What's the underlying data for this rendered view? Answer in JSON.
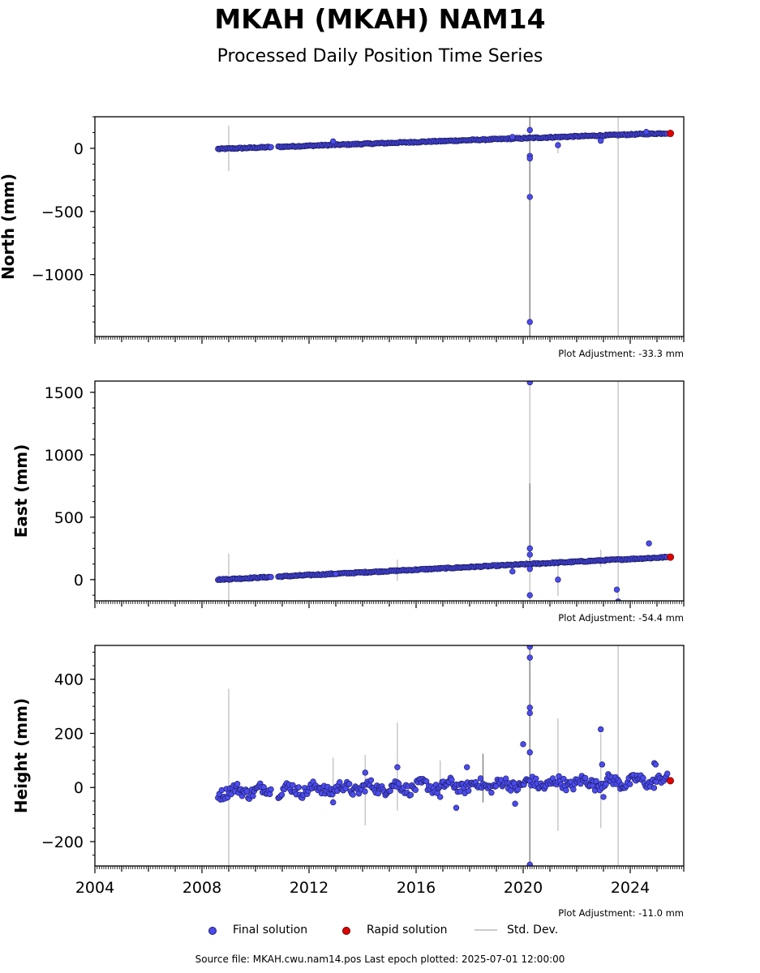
{
  "title": "MKAH (MKAH) NAM14",
  "subtitle": "Processed Daily Position Time Series",
  "legend": {
    "final": "Final solution",
    "rapid": "Rapid solution",
    "std": "Std. Dev."
  },
  "footer": "Source file: MKAH.cwu.nam14.pos  Last epoch plotted: 2025-07-01 12:00:00",
  "colors": {
    "final": "#4b4bef",
    "rapid": "#e00000",
    "stddev": "#c8c8c8",
    "axis": "#000000"
  },
  "chart_data": [
    {
      "type": "scatter",
      "ylabel": "North (mm)",
      "xlim": [
        2004.0,
        2026.0
      ],
      "ylim": [
        -1490,
        250
      ],
      "yticks": [
        0,
        -500,
        -1000
      ],
      "ytick_labels": [
        "0",
        "−500",
        "−1000"
      ],
      "adjustment": "Plot Adjustment: -33.3 mm",
      "trend": {
        "x": [
          2008.6,
          2025.4
        ],
        "y": [
          -5,
          120
        ]
      },
      "series": [
        {
          "name": "Final solution",
          "x": [
            2020.25,
            2020.25,
            2020.25,
            2020.25,
            2020.25,
            2019.6,
            2021.3,
            2022.9,
            2024.6,
            2012.9
          ],
          "y": [
            145,
            -60,
            -80,
            -385,
            -1375,
            90,
            25,
            60,
            130,
            55
          ]
        },
        {
          "name": "Rapid solution",
          "x": [
            2025.5
          ],
          "y": [
            118
          ]
        }
      ],
      "stddev": [
        {
          "x": 2009.0,
          "y0": -180,
          "y1": 180,
          "dark": false
        },
        {
          "x": 2020.25,
          "y0": -1490,
          "y1": 250,
          "dark": true
        },
        {
          "x": 2021.3,
          "y0": -40,
          "y1": 60,
          "dark": false
        },
        {
          "x": 2023.55,
          "y0": -1490,
          "y1": 250,
          "dark": false
        }
      ]
    },
    {
      "type": "scatter",
      "ylabel": "East (mm)",
      "xlim": [
        2004.0,
        2026.0
      ],
      "ylim": [
        -170,
        1590
      ],
      "yticks": [
        1500,
        1000,
        500,
        0
      ],
      "ytick_labels": [
        "1500",
        "1000",
        "500",
        "0"
      ],
      "adjustment": "Plot Adjustment: -54.4 mm",
      "trend": {
        "x": [
          2008.6,
          2025.4
        ],
        "y": [
          0,
          180
        ]
      },
      "series": [
        {
          "name": "Final solution",
          "x": [
            2020.25,
            2020.25,
            2020.25,
            2020.25,
            2020.25,
            2019.6,
            2021.3,
            2023.5,
            2023.55,
            2024.7,
            2013.0
          ],
          "y": [
            1580,
            250,
            200,
            85,
            -125,
            65,
            0,
            -80,
            -175,
            290,
            45
          ]
        },
        {
          "name": "Rapid solution",
          "x": [
            2025.5
          ],
          "y": [
            180
          ]
        }
      ],
      "stddev": [
        {
          "x": 2009.0,
          "y0": -170,
          "y1": 210,
          "dark": false
        },
        {
          "x": 2015.3,
          "y0": -10,
          "y1": 160,
          "dark": false
        },
        {
          "x": 2020.25,
          "y0": -170,
          "y1": 1590,
          "dark": false
        },
        {
          "x": 2020.25,
          "y0": 80,
          "y1": 770,
          "dark": true
        },
        {
          "x": 2021.3,
          "y0": -130,
          "y1": 140,
          "dark": false
        },
        {
          "x": 2022.9,
          "y0": 100,
          "y1": 240,
          "dark": false
        },
        {
          "x": 2023.55,
          "y0": -170,
          "y1": 1590,
          "dark": false
        }
      ]
    },
    {
      "type": "scatter",
      "ylabel": "Height (mm)",
      "xlim": [
        2004.0,
        2026.0
      ],
      "ylim": [
        -290,
        525
      ],
      "yticks": [
        400,
        200,
        0,
        -200
      ],
      "ytick_labels": [
        "400",
        "200",
        "0",
        "−200"
      ],
      "xticks": [
        2004,
        2008,
        2012,
        2016,
        2020,
        2024
      ],
      "adjustment": "Plot Adjustment: -11.0 mm",
      "trend": {
        "x": [
          2008.6,
          2025.4
        ],
        "y": [
          -15,
          25
        ]
      },
      "series": [
        {
          "name": "Final solution",
          "x": [
            2020.25,
            2020.25,
            2020.25,
            2020.25,
            2020.25,
            2020.25,
            2020.0,
            2019.7,
            2022.9,
            2022.95,
            2023.0,
            2017.5,
            2017.9,
            2014.1,
            2012.9,
            2015.3,
            2016.9,
            2024.9,
            2024.95
          ],
          "y": [
            520,
            480,
            295,
            275,
            130,
            -285,
            160,
            -60,
            215,
            85,
            -35,
            -75,
            75,
            55,
            -55,
            75,
            -35,
            90,
            85
          ]
        },
        {
          "name": "Rapid solution",
          "x": [
            2025.5
          ],
          "y": [
            25
          ]
        }
      ],
      "stddev": [
        {
          "x": 2009.0,
          "y0": -290,
          "y1": 365,
          "dark": false
        },
        {
          "x": 2012.9,
          "y0": -50,
          "y1": 110,
          "dark": false
        },
        {
          "x": 2014.1,
          "y0": -140,
          "y1": 120,
          "dark": false
        },
        {
          "x": 2015.3,
          "y0": -85,
          "y1": 240,
          "dark": false
        },
        {
          "x": 2016.9,
          "y0": -20,
          "y1": 100,
          "dark": false
        },
        {
          "x": 2018.5,
          "y0": -55,
          "y1": 125,
          "dark": true
        },
        {
          "x": 2020.25,
          "y0": -290,
          "y1": 525,
          "dark": true
        },
        {
          "x": 2021.3,
          "y0": -160,
          "y1": 255,
          "dark": false
        },
        {
          "x": 2022.9,
          "y0": -150,
          "y1": 200,
          "dark": false
        },
        {
          "x": 2023.55,
          "y0": -290,
          "y1": 525,
          "dark": false
        }
      ]
    }
  ]
}
